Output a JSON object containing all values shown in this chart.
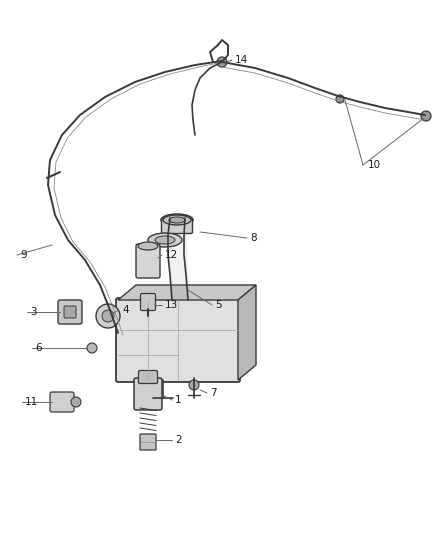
{
  "background_color": "#ffffff",
  "line_color": "#3a3a3a",
  "label_color": "#1a1a1a",
  "label_fontsize": 7.5,
  "fig_width": 4.38,
  "fig_height": 5.33,
  "dpi": 100
}
